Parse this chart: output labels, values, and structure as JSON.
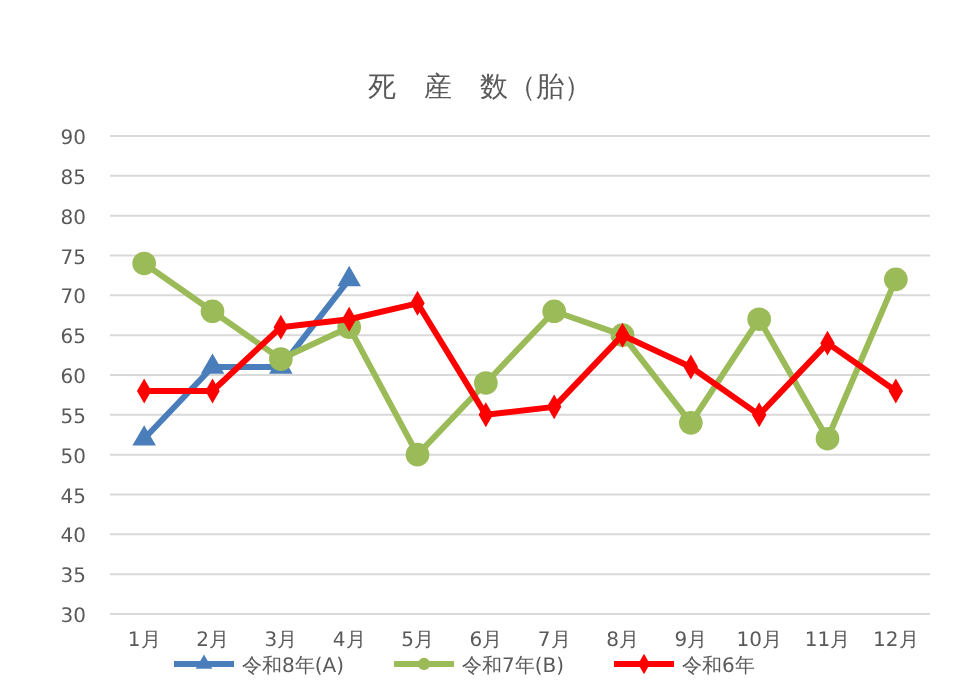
{
  "chart_data": {
    "type": "line",
    "title": "死　産　数（胎）",
    "categories": [
      "1月",
      "2月",
      "3月",
      "4月",
      "5月",
      "6月",
      "7月",
      "8月",
      "9月",
      "10月",
      "11月",
      "12月"
    ],
    "series": [
      {
        "name": "令和8年(A)",
        "color": "#4a7ebb",
        "marker": "triangle",
        "values": [
          52,
          61,
          61,
          72,
          null,
          null,
          null,
          null,
          null,
          null,
          null,
          null
        ]
      },
      {
        "name": "令和7年(B)",
        "color": "#9bbb59",
        "marker": "circle",
        "values": [
          74,
          68,
          62,
          66,
          50,
          59,
          68,
          65,
          54,
          67,
          52,
          72
        ]
      },
      {
        "name": "令和6年",
        "color": "#ff0000",
        "marker": "diamond",
        "values": [
          58,
          58,
          66,
          67,
          69,
          55,
          56,
          65,
          61,
          55,
          64,
          58
        ]
      }
    ],
    "ylim": [
      30,
      90
    ],
    "yticks": [
      30,
      35,
      40,
      45,
      50,
      55,
      60,
      65,
      70,
      75,
      80,
      85,
      90
    ],
    "grid": "y",
    "legend": "bottom"
  }
}
